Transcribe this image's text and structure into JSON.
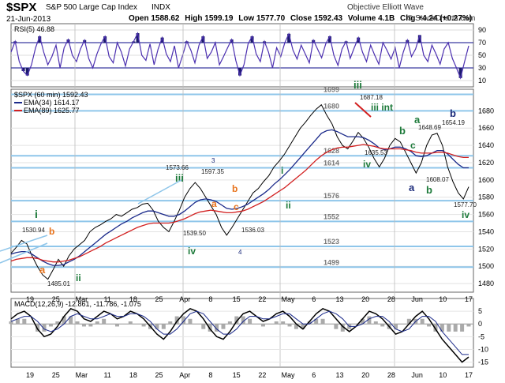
{
  "header": {
    "symbol": "$SPX",
    "name": "S&P 500 Large Cap Index",
    "exchange": "INDX",
    "source": "Objective Elliott Wave",
    "date": "21-Jun-2013",
    "open_label": "Open",
    "open": "1588.62",
    "high_label": "High",
    "high": "1599.19",
    "low_label": "Low",
    "low": "1577.70",
    "close_label": "Close",
    "close": "1592.43",
    "volume_label": "Volume",
    "volume": "4.1B",
    "chg_label": "Chg",
    "chg": "+4.24 (+0.27%)",
    "copyright": "© StockCharts.com"
  },
  "chart_data": [
    {
      "type": "line",
      "panel": "rsi",
      "legend": "RSI(5) 46.88",
      "ylim": [
        0,
        100
      ],
      "yticks": [
        10,
        30,
        50,
        70,
        90
      ],
      "bands": [
        30,
        70
      ],
      "y": [
        55,
        72,
        40,
        25,
        18,
        35,
        62,
        80,
        55,
        35,
        48,
        66,
        30,
        62,
        75,
        50,
        40,
        60,
        74,
        45,
        30,
        52,
        68,
        80,
        48,
        38,
        70,
        55,
        33,
        60,
        72,
        85,
        50,
        42,
        68,
        35,
        60,
        78,
        52,
        40,
        65,
        30,
        50,
        72,
        58,
        38,
        66,
        80,
        45,
        55,
        70,
        35,
        48,
        62,
        75,
        42,
        18,
        35,
        68,
        80,
        52,
        40,
        72,
        55,
        30,
        62,
        48,
        70,
        84,
        58,
        44,
        66,
        52,
        38,
        74,
        60,
        46,
        68,
        80,
        50,
        34,
        60,
        72,
        45,
        62,
        78,
        55,
        40,
        66,
        50,
        36,
        70,
        58,
        44,
        62,
        30,
        55,
        74,
        48,
        60,
        82,
        50,
        40,
        66,
        52,
        36,
        60,
        70,
        45,
        30,
        14,
        40,
        65
      ]
    },
    {
      "type": "line",
      "panel": "price",
      "legend": [
        "$SPX (60 min) 1592.43",
        "EMA(34) 1614.17",
        "EMA(89) 1625.77"
      ],
      "ylim": [
        1470,
        1705
      ],
      "yticks": [
        1480,
        1500,
        1520,
        1540,
        1560,
        1580,
        1600,
        1620,
        1640,
        1660,
        1680
      ],
      "xlabels": [
        "19",
        "25",
        "Mar",
        "11",
        "18",
        "25",
        "Apr",
        "8",
        "15",
        "22",
        "May",
        "6",
        "13",
        "20",
        "28",
        "Jun",
        "10",
        "17"
      ],
      "fib_levels": [
        {
          "label": "1699",
          "value": 1699
        },
        {
          "label": "1680",
          "value": 1680
        },
        {
          "label": "1628",
          "value": 1628
        },
        {
          "label": "1614",
          "value": 1614
        },
        {
          "label": "1576",
          "value": 1576
        },
        {
          "label": "1552",
          "value": 1552
        },
        {
          "label": "1523",
          "value": 1523
        },
        {
          "label": "1499",
          "value": 1499
        }
      ],
      "series": [
        {
          "name": "$SPX (60 min)",
          "y": [
            1515,
            1522,
            1530,
            1526,
            1512,
            1500,
            1490,
            1485,
            1496,
            1508,
            1500,
            1512,
            1520,
            1525,
            1530,
            1540,
            1545,
            1548,
            1552,
            1555,
            1560,
            1558,
            1562,
            1566,
            1568,
            1572,
            1573,
            1565,
            1552,
            1545,
            1540,
            1552,
            1565,
            1580,
            1590,
            1597,
            1590,
            1580,
            1570,
            1560,
            1545,
            1536,
            1545,
            1555,
            1565,
            1575,
            1585,
            1590,
            1598,
            1605,
            1615,
            1622,
            1630,
            1640,
            1650,
            1660,
            1667,
            1675,
            1682,
            1687,
            1675,
            1665,
            1650,
            1640,
            1636,
            1645,
            1655,
            1648,
            1638,
            1625,
            1615,
            1625,
            1640,
            1648,
            1644,
            1632,
            1620,
            1608,
            1620,
            1640,
            1652,
            1654,
            1640,
            1615,
            1598,
            1585,
            1578,
            1592
          ]
        },
        {
          "name": "EMA(34)",
          "y": [
            1514,
            1516,
            1517,
            1517,
            1514,
            1510,
            1506,
            1503,
            1501,
            1501,
            1502,
            1505,
            1508,
            1512,
            1517,
            1522,
            1527,
            1532,
            1537,
            1541,
            1545,
            1549,
            1552,
            1556,
            1559,
            1562,
            1564,
            1564,
            1562,
            1560,
            1558,
            1558,
            1560,
            1564,
            1569,
            1574,
            1577,
            1578,
            1577,
            1575,
            1571,
            1567,
            1566,
            1567,
            1569,
            1572,
            1576,
            1580,
            1584,
            1589,
            1595,
            1600,
            1606,
            1612,
            1619,
            1626,
            1633,
            1640,
            1647,
            1654,
            1657,
            1658,
            1656,
            1653,
            1650,
            1650,
            1650,
            1649,
            1646,
            1642,
            1637,
            1635,
            1636,
            1638,
            1638,
            1636,
            1633,
            1628,
            1627,
            1628,
            1631,
            1634,
            1634,
            1630,
            1624,
            1618,
            1614,
            1614
          ]
        },
        {
          "name": "EMA(89)",
          "y": [
            1506,
            1508,
            1509,
            1510,
            1510,
            1509,
            1507,
            1506,
            1505,
            1505,
            1506,
            1507,
            1509,
            1511,
            1514,
            1517,
            1520,
            1523,
            1527,
            1530,
            1533,
            1536,
            1539,
            1542,
            1545,
            1547,
            1549,
            1550,
            1550,
            1550,
            1550,
            1551,
            1553,
            1555,
            1558,
            1561,
            1563,
            1564,
            1565,
            1564,
            1563,
            1562,
            1562,
            1563,
            1564,
            1566,
            1569,
            1572,
            1575,
            1579,
            1583,
            1587,
            1591,
            1596,
            1601,
            1606,
            1611,
            1617,
            1623,
            1628,
            1632,
            1635,
            1637,
            1638,
            1638,
            1639,
            1640,
            1641,
            1640,
            1639,
            1637,
            1636,
            1636,
            1636,
            1636,
            1635,
            1634,
            1632,
            1631,
            1631,
            1631,
            1632,
            1632,
            1631,
            1629,
            1627,
            1626,
            1626
          ]
        }
      ],
      "annotations": [
        {
          "text": "i",
          "color": "#1d7a3a"
        },
        {
          "text": "1530.94",
          "color": "#222"
        },
        {
          "text": "b",
          "color": "#e8731c"
        },
        {
          "text": "a",
          "color": "#e8731c"
        },
        {
          "text": "1485.01",
          "color": "#222"
        },
        {
          "text": "ii",
          "color": "#1d7a3a"
        },
        {
          "text": "iii",
          "color": "#1d7a3a"
        },
        {
          "text": "1573.66",
          "color": "#222"
        },
        {
          "text": "1539.50",
          "color": "#222"
        },
        {
          "text": "iv",
          "color": "#1d7a3a"
        },
        {
          "text": "3",
          "color": "#1b2a7a"
        },
        {
          "text": "1597.35",
          "color": "#222"
        },
        {
          "text": "b",
          "color": "#e8731c"
        },
        {
          "text": "a",
          "color": "#e8731c"
        },
        {
          "text": "c",
          "color": "#e8731c"
        },
        {
          "text": "1536.03",
          "color": "#222"
        },
        {
          "text": "4",
          "color": "#1b2a7a"
        },
        {
          "text": "i",
          "color": "#1d7a3a"
        },
        {
          "text": "ii",
          "color": "#1d7a3a"
        },
        {
          "text": "iii",
          "color": "#1d7a3a"
        },
        {
          "text": "1687.18",
          "color": "#222"
        },
        {
          "text": "iii int",
          "color": "#1d7a3a"
        },
        {
          "text": "1635.53",
          "color": "#222"
        },
        {
          "text": "iv",
          "color": "#1d7a3a"
        },
        {
          "text": "b",
          "color": "#1d7a3a"
        },
        {
          "text": "a",
          "color": "#1b2a7a"
        },
        {
          "text": "a",
          "color": "#1d7a3a"
        },
        {
          "text": "1648.69",
          "color": "#222"
        },
        {
          "text": "c",
          "color": "#1d7a3a"
        },
        {
          "text": "1608.07",
          "color": "#222"
        },
        {
          "text": "b",
          "color": "#1d7a3a"
        },
        {
          "text": "b",
          "color": "#1b2a7a"
        },
        {
          "text": "1654.19",
          "color": "#222"
        },
        {
          "text": "1577.70",
          "color": "#222"
        },
        {
          "text": "iv",
          "color": "#1d7a3a"
        }
      ]
    },
    {
      "type": "line",
      "panel": "macd",
      "legend": "MACD(12,26,9) -12.861, -11.786, -1.075",
      "ylim": [
        -17,
        10
      ],
      "yticks": [
        5,
        0,
        -5,
        -10,
        -15
      ],
      "xlabels": [
        "19",
        "25",
        "Mar",
        "11",
        "18",
        "25",
        "Apr",
        "8",
        "15",
        "22",
        "May",
        "6",
        "13",
        "20",
        "28",
        "Jun",
        "10",
        "17"
      ],
      "series": [
        {
          "name": "MACD",
          "y": [
            2,
            4,
            5,
            3,
            -2,
            -5,
            -4,
            -1,
            3,
            6,
            5,
            2,
            1,
            3,
            5,
            4,
            2,
            3,
            5,
            4,
            2,
            -1,
            -4,
            -6,
            -3,
            1,
            4,
            6,
            5,
            2,
            -2,
            -5,
            -6,
            -3,
            1,
            4,
            5,
            3,
            1,
            2,
            4,
            5,
            3,
            0,
            -2,
            1,
            4,
            6,
            5,
            2,
            -1,
            -3,
            -1,
            2,
            5,
            4,
            2,
            -1,
            -4,
            -3,
            0,
            3,
            5,
            2,
            -2,
            -6,
            -9,
            -12,
            -15,
            -13
          ]
        },
        {
          "name": "Signal",
          "y": [
            1,
            2,
            3,
            3,
            1,
            -2,
            -3,
            -2,
            0,
            3,
            4,
            3,
            2,
            2,
            3,
            4,
            3,
            3,
            4,
            4,
            3,
            1,
            -2,
            -4,
            -4,
            -2,
            1,
            4,
            5,
            4,
            1,
            -2,
            -4,
            -4,
            -2,
            1,
            3,
            3,
            2,
            2,
            3,
            4,
            4,
            2,
            0,
            0,
            2,
            4,
            5,
            4,
            2,
            -1,
            -1,
            0,
            2,
            3,
            3,
            1,
            -2,
            -3,
            -2,
            1,
            3,
            3,
            1,
            -3,
            -6,
            -9,
            -12,
            -12
          ]
        }
      ],
      "histogram": [
        1,
        2,
        2,
        0,
        -3,
        -3,
        -1,
        1,
        3,
        3,
        1,
        -1,
        -1,
        1,
        2,
        0,
        -1,
        0,
        1,
        0,
        -1,
        -2,
        -2,
        -2,
        1,
        3,
        3,
        2,
        0,
        -2,
        -3,
        -3,
        -2,
        1,
        3,
        3,
        2,
        0,
        -1,
        0,
        1,
        1,
        -1,
        -2,
        -2,
        1,
        2,
        2,
        0,
        -2,
        -3,
        -2,
        0,
        2,
        3,
        1,
        -1,
        -2,
        -2,
        0,
        2,
        2,
        2,
        -1,
        -3,
        -3,
        -3,
        -3,
        -3,
        -1
      ]
    }
  ]
}
